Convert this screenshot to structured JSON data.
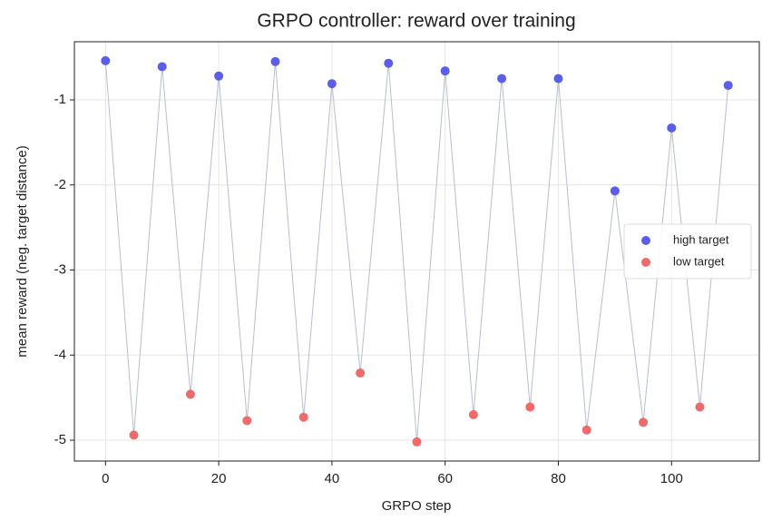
{
  "chart_data": {
    "type": "scatter",
    "title": "GRPO controller: reward over training",
    "xlabel": "GRPO step",
    "ylabel": "mean reward (neg. target distance)",
    "series": [
      {
        "name": "high target",
        "color": "#5b5ee8",
        "x": [
          0,
          10,
          20,
          30,
          40,
          50,
          60,
          70,
          80,
          90,
          100,
          110
        ],
        "values": [
          -0.54,
          -0.61,
          -0.72,
          -0.55,
          -0.81,
          -0.57,
          -0.66,
          -0.75,
          -0.75,
          -2.07,
          -1.33,
          -0.83
        ]
      },
      {
        "name": "low target",
        "color": "#ef6a6a",
        "x": [
          5,
          15,
          25,
          35,
          45,
          55,
          65,
          75,
          85,
          95,
          105
        ],
        "values": [
          -4.94,
          -4.46,
          -4.77,
          -4.73,
          -4.21,
          -5.02,
          -4.7,
          -4.61,
          -4.88,
          -4.79,
          -4.61
        ]
      }
    ],
    "connect_line": true,
    "line_color": "#b8bfcc",
    "xlim": [
      -5.5,
      115.5
    ],
    "xticks": [
      0,
      20,
      40,
      60,
      80,
      100
    ],
    "ylim": [
      -5.245,
      -0.317
    ],
    "yticks": [
      -5,
      -4,
      -3,
      -2,
      -1
    ],
    "grid": true,
    "legend": "center right"
  }
}
